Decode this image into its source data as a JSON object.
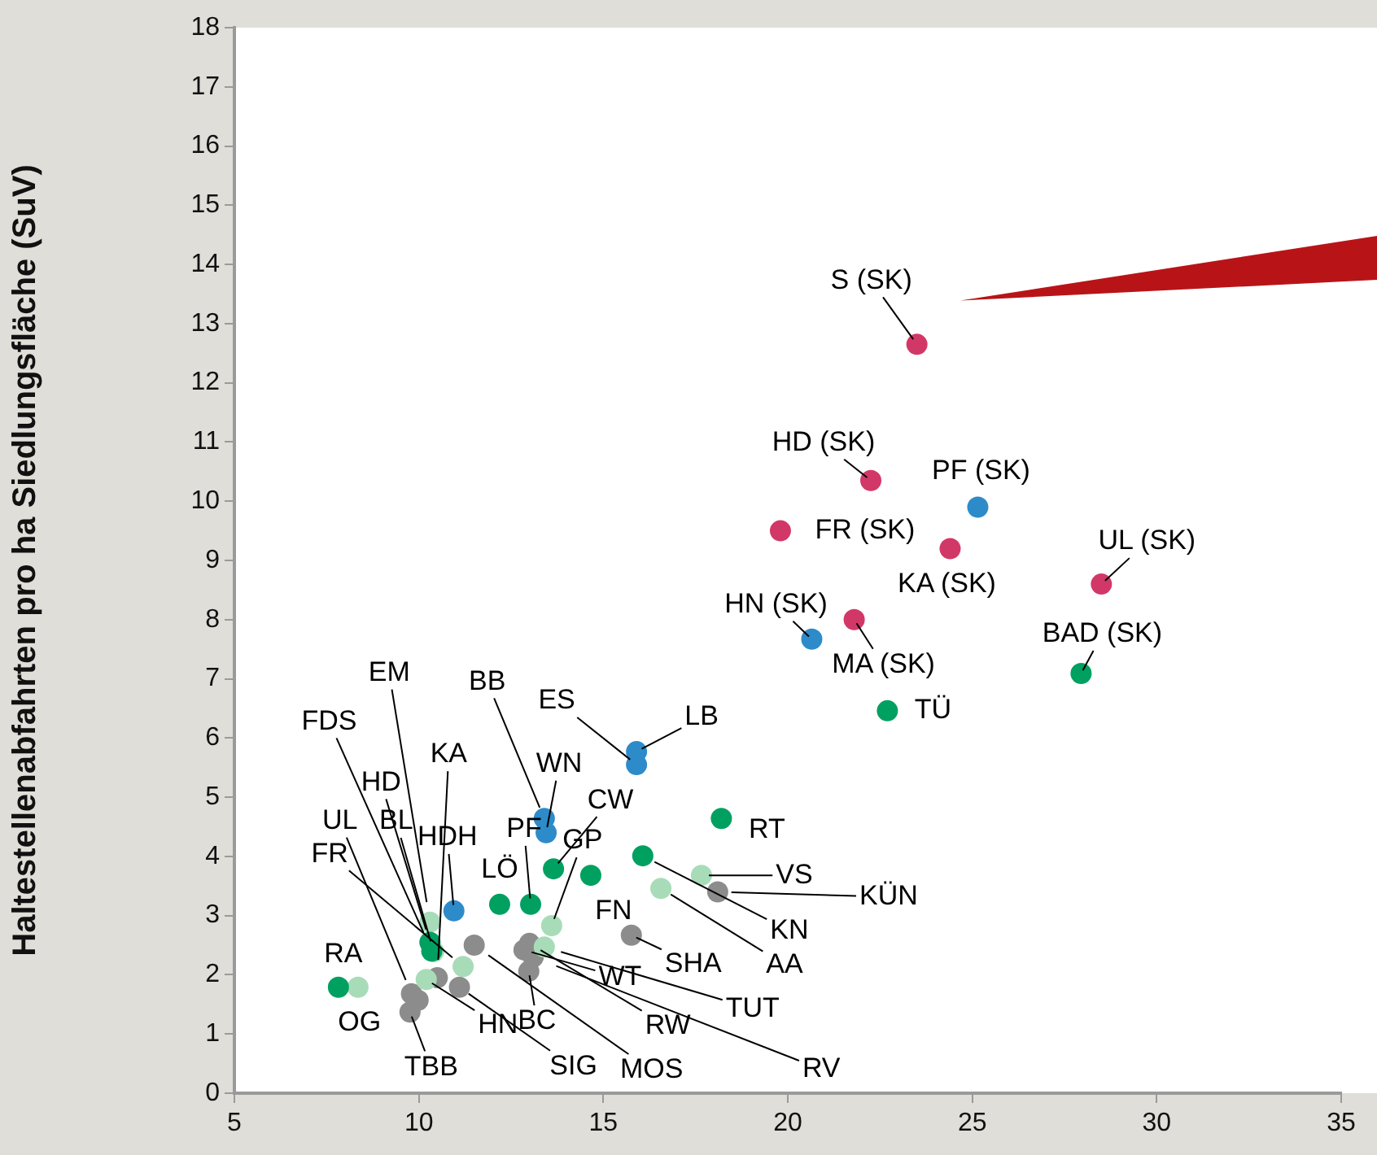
{
  "chart_data": {
    "type": "scatter",
    "ylabel": "Haltestellenabfahrten pro ha Siedlungsfläche (SuV)",
    "xlim": [
      5,
      35
    ],
    "xticks": [
      5,
      10,
      15,
      20,
      25,
      30,
      35
    ],
    "ylim": [
      0,
      18
    ],
    "yticks": [
      0,
      1,
      2,
      3,
      4,
      5,
      6,
      7,
      8,
      9,
      10,
      11,
      12,
      13,
      14,
      15,
      16,
      17,
      18
    ],
    "grid": false,
    "legend": false,
    "marker": "circle",
    "series": [
      {
        "color": "#d23867",
        "x": [
          23.5,
          22.25,
          19.8,
          24.4,
          28.5,
          21.8
        ],
        "values": [
          12.65,
          10.35,
          9.5,
          9.2,
          8.6,
          8.0
        ],
        "value_labels": [
          "S (SK)",
          "HD (SK)",
          "FR (SK)",
          "KA (SK)",
          "UL (SK)",
          "MA (SK)"
        ]
      },
      {
        "color": "#2e8bc9",
        "x": [
          25.15,
          20.65,
          15.9,
          15.9,
          13.4,
          13.45,
          10.95
        ],
        "values": [
          9.9,
          7.67,
          5.77,
          5.55,
          4.64,
          4.4,
          3.08
        ],
        "value_labels": [
          "PF (SK)",
          "HN (SK)",
          "LB",
          "ES",
          "BB",
          "WN",
          "HDH"
        ]
      },
      {
        "color": "#00a060",
        "x": [
          22.7,
          27.95,
          18.2,
          16.07,
          13.65,
          14.66,
          13.03,
          12.19,
          7.82,
          10.3,
          10.35
        ],
        "values": [
          6.46,
          7.09,
          4.64,
          4.01,
          3.79,
          3.68,
          3.19,
          3.19,
          1.79,
          2.55,
          2.4
        ],
        "value_labels": [
          "TÜ",
          "BAD (SK)",
          "RT",
          "KN",
          "CW",
          "FN",
          "PF",
          "LÖ",
          "RA",
          "HD",
          "FDS"
        ]
      },
      {
        "color": "#a8dcb8",
        "x": [
          17.66,
          16.56,
          13.6,
          13.4,
          8.35,
          10.3,
          10.4,
          10.2,
          11.2
        ],
        "values": [
          3.68,
          3.46,
          2.83,
          2.47,
          1.79,
          2.89,
          2.39,
          1.92,
          2.14
        ],
        "value_labels": [
          "VS",
          "AA",
          "GP",
          "TUT",
          null,
          "EM",
          "BL",
          "HN",
          "FR"
        ]
      },
      {
        "color": "#8c8c8c",
        "x": [
          18.1,
          15.76,
          11.5,
          13.0,
          12.85,
          13.1,
          12.98,
          10.5,
          11.1,
          9.8,
          9.98,
          9.76
        ],
        "values": [
          3.4,
          2.67,
          2.5,
          2.53,
          2.42,
          2.3,
          2.06,
          1.95,
          1.79,
          1.68,
          1.57,
          1.37
        ],
        "value_labels": [
          "KÜN",
          "SHA",
          "MOS",
          "RW",
          "WT",
          "RV",
          "BC",
          "KA",
          "SIG",
          "UL",
          "OG",
          "TBB"
        ]
      }
    ]
  }
}
